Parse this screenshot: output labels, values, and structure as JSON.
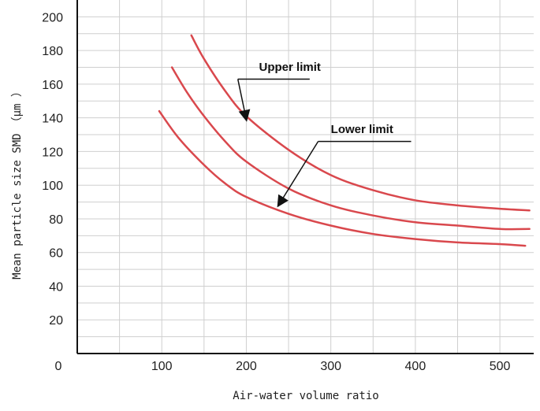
{
  "chart_data": {
    "type": "line",
    "title": "",
    "xlabel": "Air-water volume ratio",
    "ylabel": "Mean particle size SMD　（μm ）",
    "xlim": [
      0,
      540
    ],
    "ylim": [
      0,
      210
    ],
    "x_ticks": [
      0,
      100,
      200,
      300,
      400,
      500
    ],
    "y_ticks": [
      0,
      20,
      40,
      60,
      80,
      100,
      120,
      140,
      160,
      180,
      200
    ],
    "grid": "on",
    "legend": "none",
    "colors": {
      "curve": "#d9484d",
      "grid": "#cfcfcf",
      "axis": "#111111",
      "arrow": "#111111"
    },
    "series": [
      {
        "points": [
          {
            "x": 135,
            "y": 189
          },
          {
            "x": 150,
            "y": 175
          },
          {
            "x": 175,
            "y": 156
          },
          {
            "x": 200,
            "y": 141
          },
          {
            "x": 250,
            "y": 121
          },
          {
            "x": 300,
            "y": 106
          },
          {
            "x": 350,
            "y": 97
          },
          {
            "x": 400,
            "y": 91
          },
          {
            "x": 450,
            "y": 88
          },
          {
            "x": 500,
            "y": 86
          },
          {
            "x": 535,
            "y": 85
          }
        ]
      },
      {
        "points": [
          {
            "x": 112,
            "y": 170
          },
          {
            "x": 130,
            "y": 155
          },
          {
            "x": 150,
            "y": 141
          },
          {
            "x": 175,
            "y": 126
          },
          {
            "x": 200,
            "y": 114
          },
          {
            "x": 250,
            "y": 98
          },
          {
            "x": 300,
            "y": 88
          },
          {
            "x": 350,
            "y": 82
          },
          {
            "x": 400,
            "y": 78
          },
          {
            "x": 450,
            "y": 76
          },
          {
            "x": 500,
            "y": 74
          },
          {
            "x": 535,
            "y": 74
          }
        ]
      },
      {
        "points": [
          {
            "x": 97,
            "y": 144
          },
          {
            "x": 120,
            "y": 128
          },
          {
            "x": 150,
            "y": 112
          },
          {
            "x": 175,
            "y": 101
          },
          {
            "x": 200,
            "y": 93
          },
          {
            "x": 250,
            "y": 83
          },
          {
            "x": 300,
            "y": 76
          },
          {
            "x": 350,
            "y": 71
          },
          {
            "x": 400,
            "y": 68
          },
          {
            "x": 450,
            "y": 66
          },
          {
            "x": 500,
            "y": 65
          },
          {
            "x": 530,
            "y": 64
          }
        ]
      }
    ],
    "annotations": [
      {
        "name": "upper-limit",
        "text": "Upper limit",
        "text_x": 215,
        "text_y": 168,
        "leader_start_x": 275,
        "leader_start_y": 163,
        "line_end_x": 190,
        "line_end_y": 163,
        "arrow_x": 200,
        "arrow_y": 139
      },
      {
        "name": "lower-limit",
        "text": "Lower limit",
        "text_x": 300,
        "text_y": 131,
        "leader_start_x": 395,
        "leader_start_y": 126,
        "line_end_x": 285,
        "line_end_y": 126,
        "arrow_x": 238,
        "arrow_y": 88
      }
    ]
  }
}
